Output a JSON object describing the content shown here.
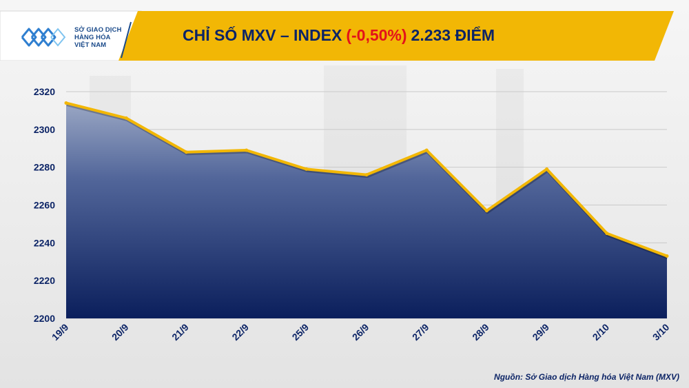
{
  "brand": {
    "logo_lines": [
      "SỞ GIAO DỊCH",
      "HÀNG HÓA",
      "VIỆT NAM"
    ],
    "colors": {
      "banner": "#f2b705",
      "navy": "#0c2466",
      "negative": "#e3121a",
      "line": "#f2b705"
    }
  },
  "header": {
    "title_prefix": "CHỈ SỐ MXV – INDEX",
    "title_change": "(-0,50%)",
    "title_value": "2.233 ĐIỂM"
  },
  "footer": {
    "source": "Nguồn: Sở Giao dịch Hàng hóa Việt Nam (MXV)"
  },
  "chart_data": {
    "type": "area",
    "categories": [
      "19/9",
      "20/9",
      "21/9",
      "22/9",
      "25/9",
      "26/9",
      "27/9",
      "28/9",
      "29/9",
      "2/10",
      "3/10"
    ],
    "values": [
      2314,
      2306,
      2288,
      2289,
      2279,
      2276,
      2289,
      2257,
      2279,
      2245,
      2233
    ],
    "ylim": [
      2200,
      2320
    ],
    "yticks": [
      2200,
      2220,
      2240,
      2260,
      2280,
      2300,
      2320
    ],
    "grid": true,
    "legend": "none"
  }
}
